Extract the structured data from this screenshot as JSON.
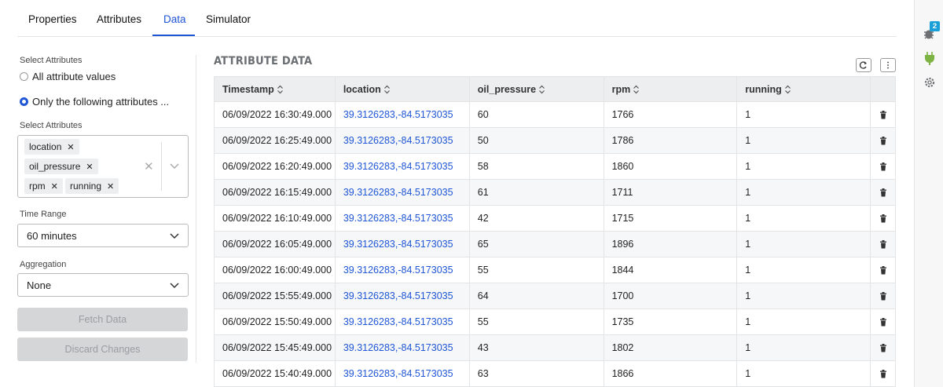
{
  "tabs": [
    "Properties",
    "Attributes",
    "Data",
    "Simulator"
  ],
  "sidebar": {
    "select_label": "Select Attributes",
    "radio_options": [
      "All attribute values",
      "Only the following attributes ..."
    ],
    "attributes_label": "Select Attributes",
    "chips": [
      "location",
      "oil_pressure",
      "rpm",
      "running"
    ],
    "time_range_label": "Time Range",
    "time_range": "60 minutes",
    "aggregation_label": "Aggregation",
    "aggregation": "None",
    "buttons": [
      "Fetch Data",
      "Discard Changes"
    ]
  },
  "panel": {
    "title": "ATTRIBUTE DATA",
    "columns": [
      "Timestamp",
      "location",
      "oil_pressure",
      "rpm",
      "running"
    ],
    "rows": [
      [
        "06/09/2022 16:30:49.000",
        "39.3126283,-84.5173035",
        60,
        1766,
        1
      ],
      [
        "06/09/2022 16:25:49.000",
        "39.3126283,-84.5173035",
        50,
        1786,
        1
      ],
      [
        "06/09/2022 16:20:49.000",
        "39.3126283,-84.5173035",
        58,
        1860,
        1
      ],
      [
        "06/09/2022 16:15:49.000",
        "39.3126283,-84.5173035",
        61,
        1711,
        1
      ],
      [
        "06/09/2022 16:10:49.000",
        "39.3126283,-84.5173035",
        42,
        1715,
        1
      ],
      [
        "06/09/2022 16:05:49.000",
        "39.3126283,-84.5173035",
        65,
        1896,
        1
      ],
      [
        "06/09/2022 16:00:49.000",
        "39.3126283,-84.5173035",
        55,
        1844,
        1
      ],
      [
        "06/09/2022 15:55:49.000",
        "39.3126283,-84.5173035",
        64,
        1700,
        1
      ],
      [
        "06/09/2022 15:50:49.000",
        "39.3126283,-84.5173035",
        55,
        1735,
        1
      ],
      [
        "06/09/2022 15:45:49.000",
        "39.3126283,-84.5173035",
        43,
        1802,
        1
      ],
      [
        "06/09/2022 15:40:49.000",
        "39.3126283,-84.5173035",
        63,
        1866,
        1
      ]
    ]
  },
  "badge": 2
}
